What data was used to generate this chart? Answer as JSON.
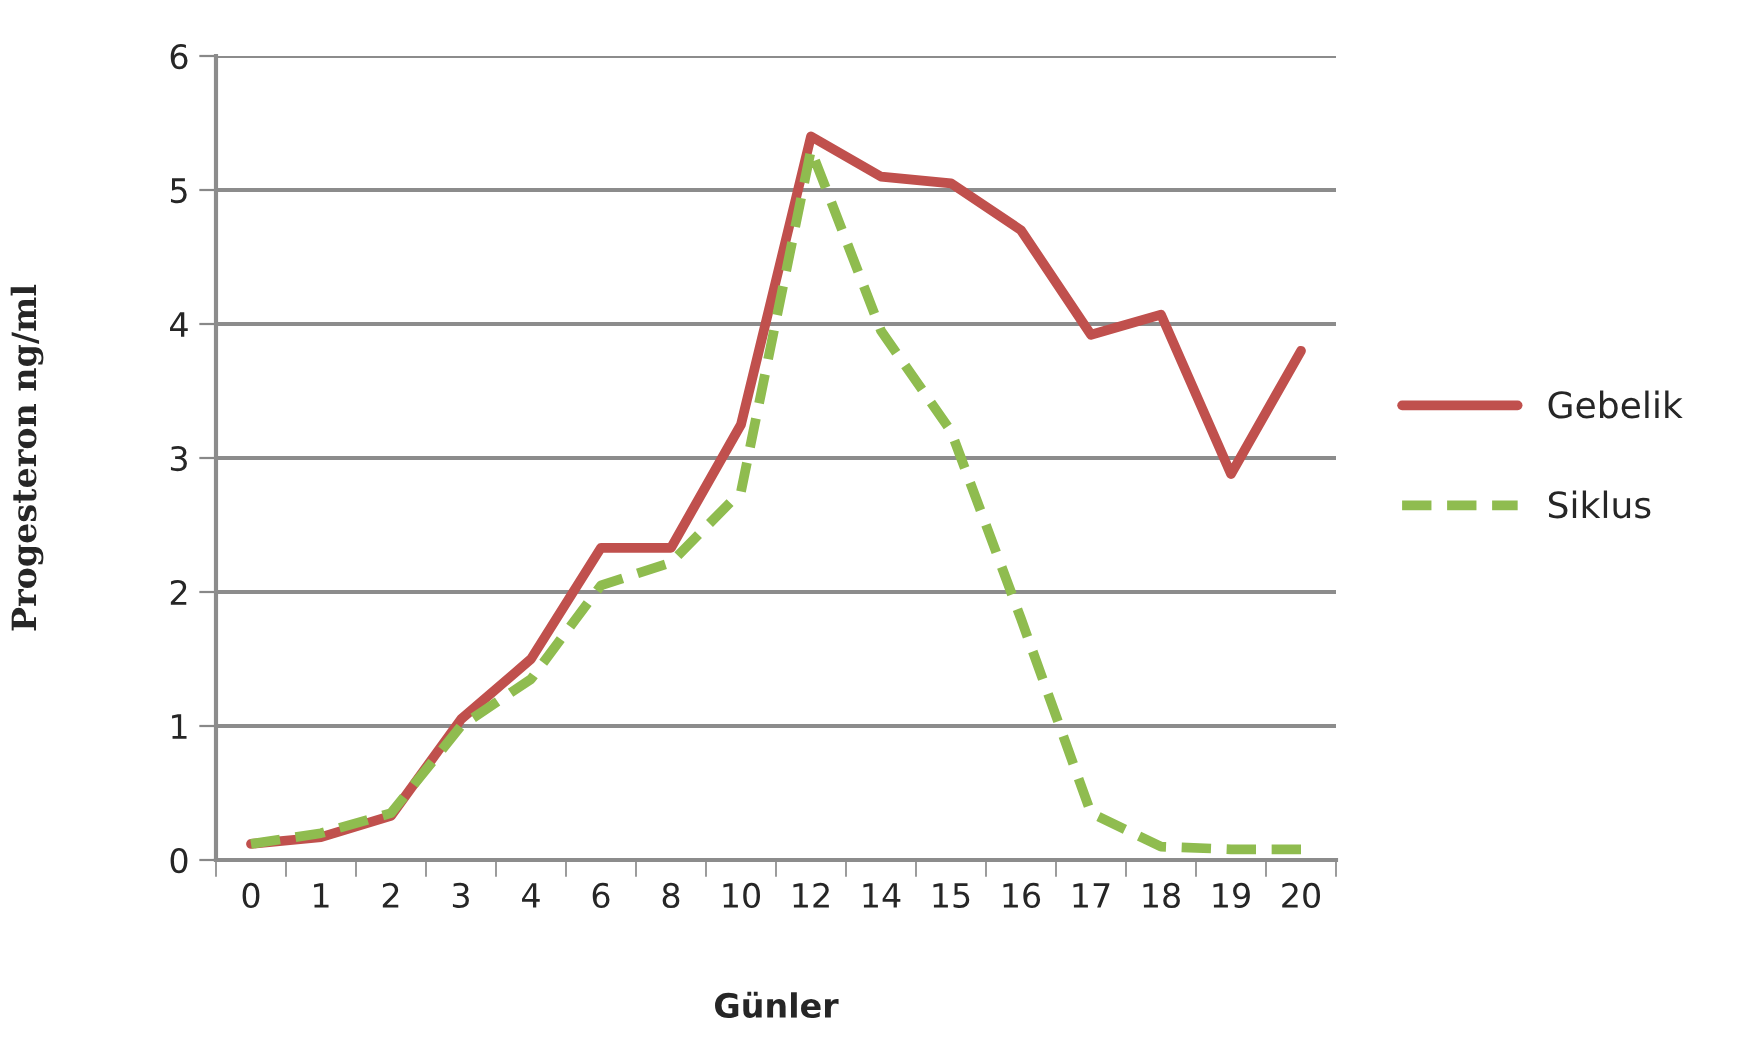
{
  "chart_data": {
    "type": "line",
    "xlabel": "Günler",
    "ylabel": "Progesteron ng/ml",
    "categories": [
      "0",
      "1",
      "2",
      "3",
      "4",
      "6",
      "8",
      "10",
      "12",
      "14",
      "15",
      "16",
      "17",
      "18",
      "19",
      "20"
    ],
    "series": [
      {
        "name": "Gebelik",
        "color": "#c0504d",
        "line_style": "solid",
        "values": [
          0.12,
          0.17,
          0.33,
          1.05,
          1.5,
          2.33,
          2.33,
          3.25,
          5.4,
          5.1,
          5.05,
          4.7,
          3.92,
          4.07,
          2.88,
          3.8
        ]
      },
      {
        "name": "Siklus",
        "color": "#8fbc4f",
        "line_style": "dashed",
        "values": [
          0.12,
          0.2,
          0.35,
          1.0,
          1.35,
          2.05,
          2.22,
          2.75,
          5.3,
          3.95,
          3.2,
          1.8,
          0.35,
          0.1,
          0.08,
          0.08
        ]
      }
    ],
    "ylim": [
      0,
      6
    ],
    "yticks": [
      0,
      1,
      2,
      3,
      4,
      5,
      6
    ],
    "grid": "y",
    "legend": "right",
    "marker": "none"
  }
}
